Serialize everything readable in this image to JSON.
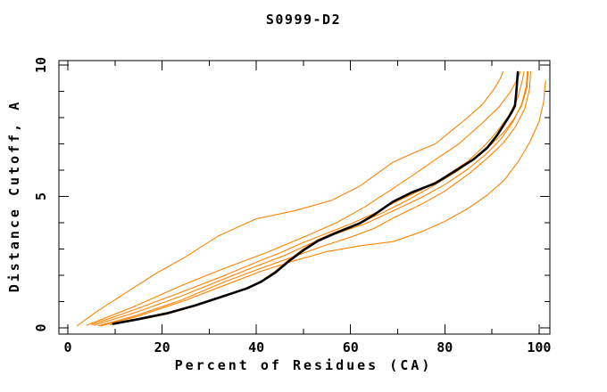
{
  "chart_data": {
    "type": "line",
    "title": "S0999-D2",
    "xlabel": "Percent of Residues (CA)",
    "ylabel": "Distance Cutoff, A",
    "xlim": [
      -1.9,
      102.3
    ],
    "ylim": [
      -0.24,
      10.17
    ],
    "grid": false,
    "legend": "none",
    "colors": {
      "model_orange": "#ff8200",
      "reference_black": "#000000"
    },
    "x_axis": {
      "major": [
        {
          "v": 0,
          "label": "0"
        },
        {
          "v": 20,
          "label": "20"
        },
        {
          "v": 40,
          "label": "40"
        },
        {
          "v": 60,
          "label": "60"
        },
        {
          "v": 80,
          "label": "80"
        },
        {
          "v": 100,
          "label": "100"
        }
      ],
      "minor": [
        10,
        30,
        50,
        70,
        90
      ]
    },
    "y_axis": {
      "major": [
        {
          "v": 0,
          "label": "0"
        },
        {
          "v": 5,
          "label": "5"
        },
        {
          "v": 10,
          "label": "10"
        }
      ],
      "minor": [
        1,
        2,
        3,
        4,
        6,
        7,
        8,
        9
      ]
    },
    "series": [
      {
        "name": "model-curve-1",
        "color": "#ff8200",
        "emphasis": false,
        "points": [
          [
            2,
            0.08
          ],
          [
            6,
            0.6
          ],
          [
            12,
            1.3
          ],
          [
            19,
            2.1
          ],
          [
            25,
            2.7
          ],
          [
            32,
            3.5
          ],
          [
            40,
            4.15
          ],
          [
            48,
            4.45
          ],
          [
            56,
            4.85
          ],
          [
            62,
            5.4
          ],
          [
            69,
            6.3
          ],
          [
            74,
            6.7
          ],
          [
            78,
            7.0
          ],
          [
            84.5,
            7.95
          ],
          [
            88,
            8.5
          ],
          [
            90.5,
            9.1
          ],
          [
            91.8,
            9.5
          ],
          [
            92.4,
            9.75
          ]
        ]
      },
      {
        "name": "model-curve-2",
        "color": "#ff8200",
        "emphasis": false,
        "points": [
          [
            4,
            0.1
          ],
          [
            14,
            0.8
          ],
          [
            24,
            1.6
          ],
          [
            33,
            2.25
          ],
          [
            42,
            2.85
          ],
          [
            50,
            3.45
          ],
          [
            57,
            4.0
          ],
          [
            63,
            4.6
          ],
          [
            69,
            5.3
          ],
          [
            74,
            5.9
          ],
          [
            78,
            6.4
          ],
          [
            83,
            7.0
          ],
          [
            88,
            7.8
          ],
          [
            91.5,
            8.4
          ],
          [
            94,
            9.0
          ],
          [
            95.5,
            9.5
          ],
          [
            96,
            9.75
          ]
        ]
      },
      {
        "name": "model-curve-3",
        "color": "#ff8200",
        "emphasis": false,
        "points": [
          [
            5,
            0.12
          ],
          [
            14,
            0.68
          ],
          [
            24,
            1.35
          ],
          [
            33,
            1.97
          ],
          [
            40,
            2.5
          ],
          [
            45,
            2.85
          ],
          [
            50,
            3.25
          ],
          [
            55,
            3.6
          ],
          [
            60,
            3.95
          ],
          [
            65,
            4.35
          ],
          [
            69,
            4.74
          ],
          [
            75,
            5.25
          ],
          [
            80,
            5.75
          ],
          [
            85,
            6.35
          ],
          [
            88.5,
            6.95
          ],
          [
            91,
            7.45
          ],
          [
            93.5,
            8.05
          ],
          [
            95.5,
            8.75
          ],
          [
            96.5,
            9.45
          ],
          [
            96.8,
            9.75
          ]
        ]
      },
      {
        "name": "model-curve-4",
        "color": "#ff8200",
        "emphasis": false,
        "points": [
          [
            5.5,
            0.1
          ],
          [
            14,
            0.56
          ],
          [
            24,
            1.2
          ],
          [
            33,
            1.85
          ],
          [
            40,
            2.35
          ],
          [
            46,
            2.75
          ],
          [
            52,
            3.25
          ],
          [
            58,
            3.65
          ],
          [
            63,
            3.95
          ],
          [
            69,
            4.45
          ],
          [
            75,
            4.95
          ],
          [
            80,
            5.45
          ],
          [
            85,
            6.05
          ],
          [
            89,
            6.65
          ],
          [
            92,
            7.2
          ],
          [
            94.5,
            7.85
          ],
          [
            96.3,
            8.5
          ],
          [
            97.3,
            9.2
          ],
          [
            97.5,
            9.75
          ]
        ]
      },
      {
        "name": "model-curve-5",
        "color": "#ff8200",
        "emphasis": false,
        "points": [
          [
            6.5,
            0.08
          ],
          [
            14,
            0.44
          ],
          [
            24,
            1.05
          ],
          [
            33,
            1.73
          ],
          [
            40,
            2.2
          ],
          [
            47,
            2.65
          ],
          [
            54,
            3.1
          ],
          [
            60,
            3.45
          ],
          [
            65,
            3.78
          ],
          [
            69,
            4.17
          ],
          [
            75,
            4.7
          ],
          [
            80,
            5.2
          ],
          [
            85,
            5.85
          ],
          [
            89,
            6.45
          ],
          [
            92.5,
            7.05
          ],
          [
            95,
            7.65
          ],
          [
            97,
            8.35
          ],
          [
            98,
            9.1
          ],
          [
            98.2,
            9.75
          ]
        ]
      },
      {
        "name": "model-curve-6",
        "color": "#ff8200",
        "emphasis": false,
        "points": [
          [
            9,
            0.12
          ],
          [
            15,
            0.3
          ],
          [
            21,
            0.52
          ],
          [
            27,
            0.82
          ],
          [
            33,
            1.18
          ],
          [
            38,
            1.5
          ],
          [
            41,
            1.78
          ],
          [
            44,
            2.15
          ],
          [
            47,
            2.6
          ],
          [
            50,
            3.0
          ],
          [
            53,
            3.35
          ],
          [
            57,
            3.66
          ],
          [
            62,
            4.0
          ],
          [
            67,
            4.4
          ],
          [
            72,
            4.85
          ],
          [
            78,
            5.45
          ],
          [
            83,
            6.0
          ],
          [
            87,
            6.55
          ],
          [
            90,
            7.0
          ],
          [
            92.5,
            7.45
          ],
          [
            94.5,
            7.9
          ],
          [
            96.3,
            8.45
          ],
          [
            97.4,
            9.1
          ],
          [
            97.7,
            9.75
          ]
        ]
      },
      {
        "name": "model-curve-7",
        "color": "#ff8200",
        "emphasis": false,
        "points": [
          [
            7,
            0.07
          ],
          [
            15,
            0.45
          ],
          [
            25,
            1.05
          ],
          [
            33,
            1.6
          ],
          [
            41,
            2.15
          ],
          [
            48,
            2.55
          ],
          [
            55,
            2.9
          ],
          [
            62,
            3.12
          ],
          [
            69,
            3.28
          ],
          [
            75,
            3.65
          ],
          [
            80,
            4.05
          ],
          [
            85,
            4.55
          ],
          [
            89,
            5.05
          ],
          [
            92.5,
            5.6
          ],
          [
            95.5,
            6.3
          ],
          [
            98,
            7.05
          ],
          [
            100,
            7.85
          ],
          [
            101,
            8.6
          ],
          [
            101.4,
            9.4
          ]
        ]
      },
      {
        "name": "reference-curve",
        "color": "#000000",
        "emphasis": true,
        "points": [
          [
            9.6,
            0.15
          ],
          [
            15,
            0.33
          ],
          [
            21,
            0.55
          ],
          [
            27,
            0.85
          ],
          [
            33,
            1.2
          ],
          [
            38,
            1.5
          ],
          [
            41,
            1.75
          ],
          [
            44,
            2.1
          ],
          [
            47,
            2.55
          ],
          [
            50,
            2.95
          ],
          [
            53,
            3.3
          ],
          [
            57,
            3.62
          ],
          [
            62,
            3.98
          ],
          [
            65,
            4.3
          ],
          [
            69,
            4.8
          ],
          [
            73,
            5.15
          ],
          [
            78,
            5.5
          ],
          [
            82,
            5.95
          ],
          [
            86,
            6.4
          ],
          [
            89,
            6.85
          ],
          [
            91.1,
            7.33
          ],
          [
            93.4,
            7.97
          ],
          [
            94.3,
            8.24
          ],
          [
            94.9,
            8.45
          ],
          [
            95.2,
            9.0
          ],
          [
            95.5,
            9.73
          ]
        ]
      }
    ]
  }
}
